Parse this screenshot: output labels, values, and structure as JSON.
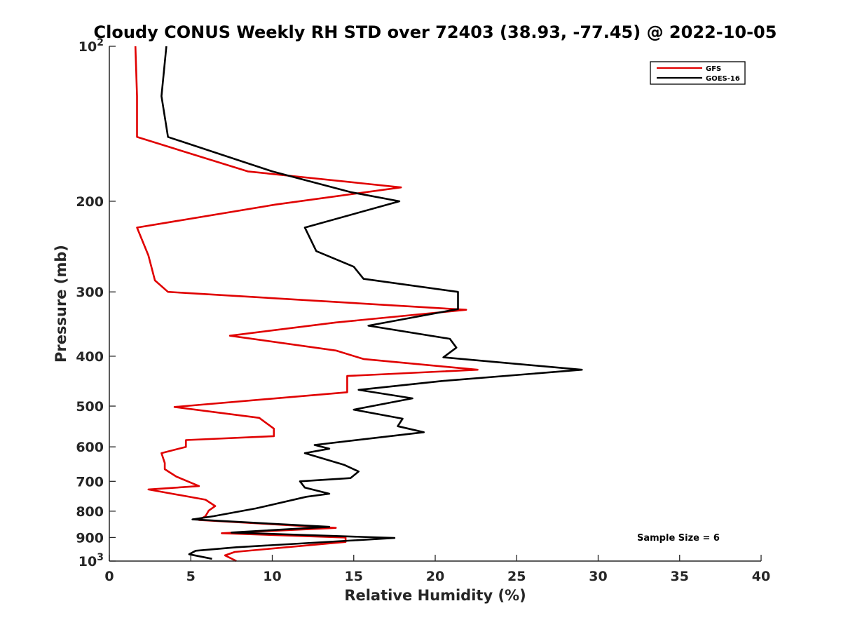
{
  "chart_data": {
    "type": "line",
    "title": "Cloudy CONUS Weekly RH STD over 72403 (38.93, -77.45) @ 2022-10-05",
    "xlabel": "Relative Humidity (%)",
    "ylabel": "Pressure (mb)",
    "xlim": [
      0,
      40
    ],
    "ylim": [
      100,
      1000
    ],
    "y_scale": "log",
    "y_reversed": true,
    "x_ticks": [
      0,
      5,
      10,
      15,
      20,
      25,
      30,
      35,
      40
    ],
    "y_ticks": [
      {
        "value": 100,
        "label": "10",
        "sup": "2"
      },
      {
        "value": 200,
        "label": "200"
      },
      {
        "value": 300,
        "label": "300"
      },
      {
        "value": 400,
        "label": "400"
      },
      {
        "value": 500,
        "label": "500"
      },
      {
        "value": 600,
        "label": "600"
      },
      {
        "value": 700,
        "label": "700"
      },
      {
        "value": 800,
        "label": "800"
      },
      {
        "value": 900,
        "label": "900"
      },
      {
        "value": 1000,
        "label": "10",
        "sup": "3"
      }
    ],
    "grid": false,
    "legend_position": "top-right",
    "annotation": "Sample Size = 6",
    "series": [
      {
        "name": "GFS",
        "color": "#e00000",
        "points": [
          [
            1.6,
            100
          ],
          [
            1.7,
            125
          ],
          [
            1.7,
            150
          ],
          [
            8.5,
            175
          ],
          [
            17.9,
            188
          ],
          [
            10.2,
            203
          ],
          [
            1.7,
            225
          ],
          [
            2.4,
            255
          ],
          [
            2.8,
            285
          ],
          [
            3.6,
            300
          ],
          [
            21.9,
            325
          ],
          [
            13.9,
            344
          ],
          [
            7.4,
            365
          ],
          [
            13.9,
            390
          ],
          [
            15.6,
            405
          ],
          [
            22.6,
            425
          ],
          [
            14.6,
            437
          ],
          [
            14.6,
            470
          ],
          [
            4.0,
            502
          ],
          [
            9.2,
            527
          ],
          [
            10.1,
            553
          ],
          [
            10.1,
            572
          ],
          [
            4.7,
            582
          ],
          [
            4.7,
            600
          ],
          [
            3.2,
            617
          ],
          [
            3.4,
            645
          ],
          [
            3.4,
            663
          ],
          [
            4.1,
            685
          ],
          [
            5.5,
            715
          ],
          [
            2.4,
            726
          ],
          [
            5.9,
            760
          ],
          [
            6.5,
            782
          ],
          [
            6.1,
            798
          ],
          [
            5.9,
            818
          ],
          [
            5.5,
            832
          ],
          [
            13.9,
            862
          ],
          [
            6.9,
            883
          ],
          [
            14.5,
            900
          ],
          [
            14.5,
            918
          ],
          [
            7.7,
            960
          ],
          [
            7.1,
            975
          ],
          [
            7.8,
            1000
          ]
        ]
      },
      {
        "name": "GOES-16",
        "color": "#000000",
        "points": [
          [
            3.5,
            100
          ],
          [
            3.2,
            125
          ],
          [
            3.6,
            150
          ],
          [
            10.0,
            175
          ],
          [
            14.8,
            192
          ],
          [
            17.8,
            200
          ],
          [
            12.0,
            225
          ],
          [
            12.7,
            250
          ],
          [
            15.0,
            268
          ],
          [
            15.6,
            283
          ],
          [
            21.4,
            300
          ],
          [
            21.4,
            324
          ],
          [
            15.9,
            349
          ],
          [
            20.9,
            370
          ],
          [
            21.3,
            385
          ],
          [
            20.5,
            402
          ],
          [
            29.0,
            425
          ],
          [
            20.4,
            447
          ],
          [
            15.3,
            465
          ],
          [
            18.6,
            483
          ],
          [
            15.0,
            508
          ],
          [
            18.0,
            529
          ],
          [
            17.7,
            547
          ],
          [
            19.3,
            562
          ],
          [
            12.6,
            595
          ],
          [
            13.5,
            605
          ],
          [
            12.0,
            617
          ],
          [
            14.4,
            650
          ],
          [
            15.3,
            670
          ],
          [
            14.8,
            690
          ],
          [
            11.7,
            700
          ],
          [
            12.0,
            720
          ],
          [
            13.5,
            740
          ],
          [
            12.1,
            750
          ],
          [
            9.0,
            790
          ],
          [
            6.4,
            818
          ],
          [
            5.1,
            830
          ],
          [
            13.5,
            858
          ],
          [
            7.5,
            880
          ],
          [
            17.5,
            902
          ],
          [
            7.8,
            940
          ],
          [
            5.3,
            955
          ],
          [
            4.9,
            970
          ],
          [
            6.3,
            990
          ]
        ]
      }
    ]
  }
}
